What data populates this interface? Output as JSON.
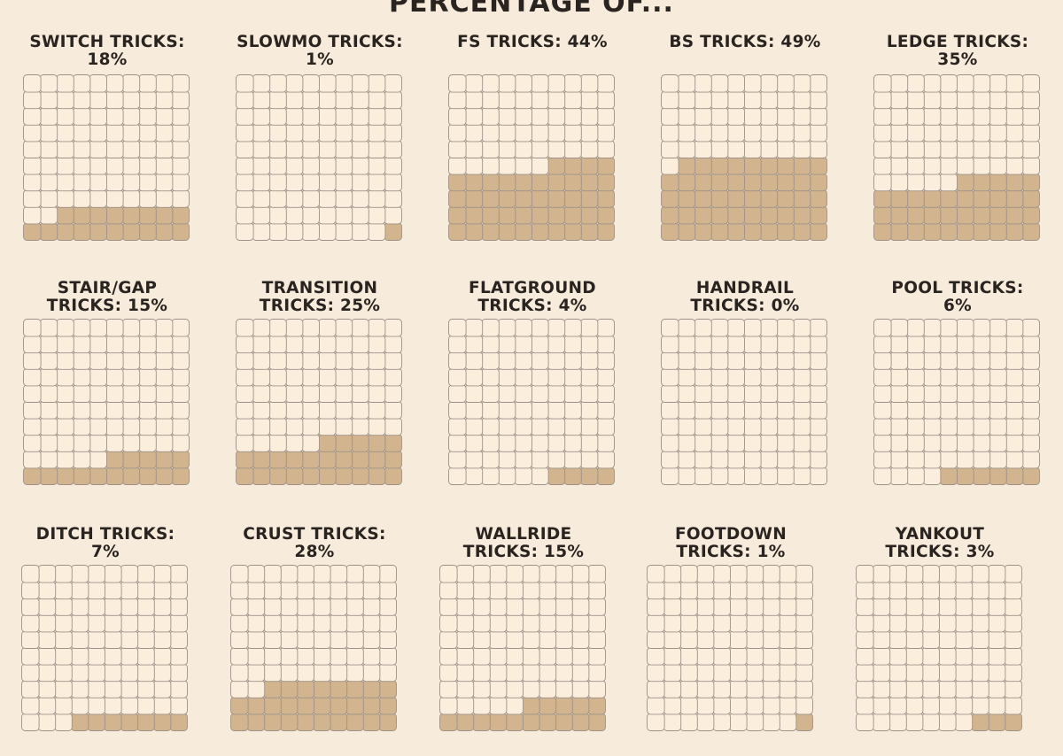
{
  "title": "PERCENTAGE OF...",
  "colors": {
    "background": "#f7ebdb",
    "filled": "#d2b48f",
    "empty": "#fbeedd",
    "outline": "#9e9288",
    "text": "#2a2420"
  },
  "chart_data": [
    {
      "type": "waffle",
      "title": "SWITCH TRICKS: 18%",
      "value": 18,
      "grid": [
        10,
        10
      ]
    },
    {
      "type": "waffle",
      "title": "SLOWMO TRICKS: 1%",
      "value": 1,
      "grid": [
        10,
        10
      ]
    },
    {
      "type": "waffle",
      "title": "FS TRICKS: 44%",
      "value": 44,
      "grid": [
        10,
        10
      ]
    },
    {
      "type": "waffle",
      "title": "BS TRICKS: 49%",
      "value": 49,
      "grid": [
        10,
        10
      ]
    },
    {
      "type": "waffle",
      "title": "LEDGE TRICKS: 35%",
      "value": 35,
      "grid": [
        10,
        10
      ]
    },
    {
      "type": "waffle",
      "title": "STAIR/GAP TRICKS: 15%",
      "value": 15,
      "grid": [
        10,
        10
      ]
    },
    {
      "type": "waffle",
      "title": "TRANSITION TRICKS: 25%",
      "value": 25,
      "grid": [
        10,
        10
      ]
    },
    {
      "type": "waffle",
      "title": "FLATGROUND TRICKS: 4%",
      "value": 4,
      "grid": [
        10,
        10
      ]
    },
    {
      "type": "waffle",
      "title": "HANDRAIL TRICKS: 0%",
      "value": 0,
      "grid": [
        10,
        10
      ]
    },
    {
      "type": "waffle",
      "title": "POOL TRICKS: 6%",
      "value": 6,
      "grid": [
        10,
        10
      ]
    },
    {
      "type": "waffle",
      "title": "DITCH TRICKS: 7%",
      "value": 7,
      "grid": [
        10,
        10
      ]
    },
    {
      "type": "waffle",
      "title": "CRUST TRICKS: 28%",
      "value": 28,
      "grid": [
        10,
        10
      ]
    },
    {
      "type": "waffle",
      "title": "WALLRIDE TRICKS: 15%",
      "value": 15,
      "grid": [
        10,
        10
      ]
    },
    {
      "type": "waffle",
      "title": "FOOTDOWN TRICKS: 1%",
      "value": 1,
      "grid": [
        10,
        10
      ]
    },
    {
      "type": "waffle",
      "title": "YANKOUT TRICKS: 3%",
      "value": 3,
      "grid": [
        10,
        10
      ]
    }
  ]
}
